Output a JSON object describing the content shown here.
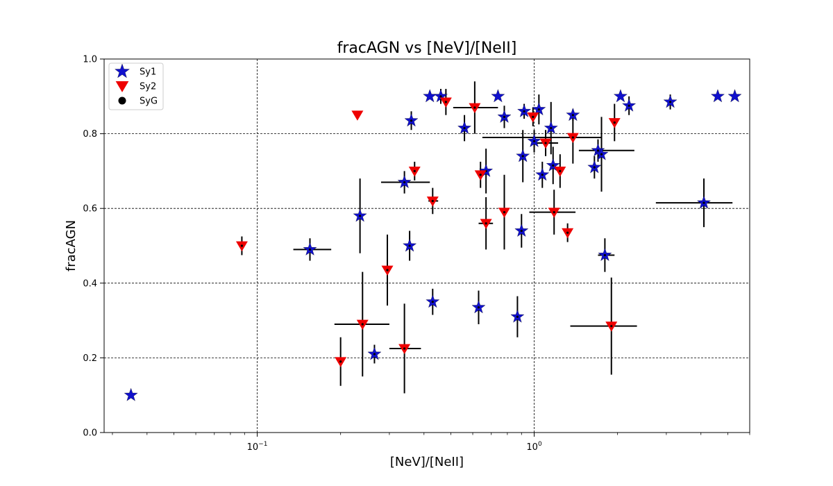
{
  "chart_data": {
    "type": "scatter",
    "title": "fracAGN vs [NeV]/[NeII]",
    "xlabel": "[NeV]/[NeII]",
    "ylabel": "fracAGN",
    "xscale": "log",
    "xlim": [
      0.028,
      6.0
    ],
    "ylim": [
      0.0,
      1.0
    ],
    "grid": true,
    "legend_position": "top-left",
    "xticks": [
      {
        "value": 0.1,
        "base": "10",
        "exp": "−1"
      },
      {
        "value": 1,
        "base": "10",
        "exp": "0"
      }
    ],
    "yticks": [
      {
        "value": 0.0,
        "label": "0.0"
      },
      {
        "value": 0.2,
        "label": "0.2"
      },
      {
        "value": 0.4,
        "label": "0.4"
      },
      {
        "value": 0.6,
        "label": "0.6"
      },
      {
        "value": 0.8,
        "label": "0.8"
      },
      {
        "value": 1.0,
        "label": "1.0"
      }
    ],
    "series": [
      {
        "name": "Sy1",
        "marker": "star",
        "color": "#1010cc",
        "points": [
          {
            "x": 0.035,
            "y": 0.1
          },
          {
            "x": 0.155,
            "y": 0.49,
            "xerr": [
              0.02,
              0.03
            ],
            "yerr": [
              0.03,
              0.03
            ]
          },
          {
            "x": 0.235,
            "y": 0.58,
            "yerr": [
              0.1,
              0.1
            ]
          },
          {
            "x": 0.265,
            "y": 0.21,
            "yerr": [
              0.025,
              0.025
            ]
          },
          {
            "x": 0.34,
            "y": 0.67,
            "xerr": [
              0.06,
              0.08
            ],
            "yerr": [
              0.03,
              0.03
            ]
          },
          {
            "x": 0.355,
            "y": 0.5,
            "yerr": [
              0.04,
              0.04
            ]
          },
          {
            "x": 0.36,
            "y": 0.835,
            "yerr": [
              0.025,
              0.025
            ]
          },
          {
            "x": 0.42,
            "y": 0.9
          },
          {
            "x": 0.43,
            "y": 0.35,
            "yerr": [
              0.035,
              0.035
            ]
          },
          {
            "x": 0.46,
            "y": 0.9,
            "yerr": [
              0.02,
              0.02
            ]
          },
          {
            "x": 0.56,
            "y": 0.815,
            "yerr": [
              0.035,
              0.035
            ]
          },
          {
            "x": 0.63,
            "y": 0.335,
            "yerr": [
              0.045,
              0.045
            ]
          },
          {
            "x": 0.67,
            "y": 0.7,
            "yerr": [
              0.06,
              0.06
            ]
          },
          {
            "x": 0.74,
            "y": 0.9
          },
          {
            "x": 0.78,
            "y": 0.845,
            "yerr": [
              0.03,
              0.03
            ]
          },
          {
            "x": 0.87,
            "y": 0.31,
            "yerr": [
              0.055,
              0.055
            ]
          },
          {
            "x": 0.9,
            "y": 0.54,
            "yerr": [
              0.045,
              0.045
            ]
          },
          {
            "x": 0.91,
            "y": 0.74,
            "yerr": [
              0.07,
              0.07
            ]
          },
          {
            "x": 0.92,
            "y": 0.86,
            "yerr": [
              0.02,
              0.02
            ]
          },
          {
            "x": 1.0,
            "y": 0.78,
            "yerr": [
              0.03,
              0.03
            ]
          },
          {
            "x": 1.04,
            "y": 0.865,
            "yerr": [
              0.04,
              0.04
            ]
          },
          {
            "x": 1.07,
            "y": 0.69,
            "yerr": [
              0.035,
              0.035
            ]
          },
          {
            "x": 1.15,
            "y": 0.815,
            "yerr": [
              0.07,
              0.07
            ]
          },
          {
            "x": 1.17,
            "y": 0.715,
            "yerr": [
              0.05,
              0.05
            ]
          },
          {
            "x": 1.38,
            "y": 0.85,
            "yerr": [
              0.015,
              0.015
            ]
          },
          {
            "x": 1.65,
            "y": 0.71,
            "yerr": [
              0.03,
              0.03
            ]
          },
          {
            "x": 1.7,
            "y": 0.755,
            "xerr": [
              0.25,
              0.6
            ],
            "yerr": [
              0.03,
              0.03
            ]
          },
          {
            "x": 1.75,
            "y": 0.745,
            "yerr": [
              0.1,
              0.1
            ]
          },
          {
            "x": 1.8,
            "y": 0.475,
            "xerr": [
              0.1,
              0.15
            ],
            "yerr": [
              0.045,
              0.045
            ]
          },
          {
            "x": 2.05,
            "y": 0.9
          },
          {
            "x": 2.2,
            "y": 0.875,
            "yerr": [
              0.025,
              0.025
            ]
          },
          {
            "x": 3.1,
            "y": 0.885,
            "yerr": [
              0.02,
              0.02
            ]
          },
          {
            "x": 4.1,
            "y": 0.615,
            "xerr": [
              1.35,
              1.1
            ],
            "yerr": [
              0.065,
              0.065
            ]
          },
          {
            "x": 4.6,
            "y": 0.9
          },
          {
            "x": 5.3,
            "y": 0.9
          }
        ]
      },
      {
        "name": "Sy2",
        "marker": "triangle-down",
        "color": "#ee0000",
        "points": [
          {
            "x": 0.088,
            "y": 0.5,
            "yerr": [
              0.025,
              0.025
            ]
          },
          {
            "x": 0.2,
            "y": 0.19,
            "yerr": [
              0.065,
              0.065
            ]
          },
          {
            "x": 0.23,
            "y": 0.85
          },
          {
            "x": 0.24,
            "y": 0.29,
            "xerr": [
              0.05,
              0.06
            ],
            "yerr": [
              0.14,
              0.14
            ]
          },
          {
            "x": 0.295,
            "y": 0.435,
            "yerr": [
              0.095,
              0.095
            ]
          },
          {
            "x": 0.34,
            "y": 0.225,
            "xerr": [
              0.04,
              0.05
            ],
            "yerr": [
              0.12,
              0.12
            ]
          },
          {
            "x": 0.37,
            "y": 0.7,
            "yerr": [
              0.025,
              0.025
            ]
          },
          {
            "x": 0.43,
            "y": 0.62,
            "xerr": [
              0.015,
              0.02
            ],
            "yerr": [
              0.035,
              0.035
            ]
          },
          {
            "x": 0.48,
            "y": 0.885,
            "yerr": [
              0.035,
              0.035
            ]
          },
          {
            "x": 0.61,
            "y": 0.87,
            "xerr": [
              0.1,
              0.13
            ],
            "yerr": [
              0.07,
              0.07
            ]
          },
          {
            "x": 0.64,
            "y": 0.69,
            "yerr": [
              0.035,
              0.035
            ]
          },
          {
            "x": 0.67,
            "y": 0.56,
            "xerr": [
              0.04,
              0.04
            ],
            "yerr": [
              0.07,
              0.07
            ]
          },
          {
            "x": 0.78,
            "y": 0.59,
            "yerr": [
              0.1,
              0.1
            ]
          },
          {
            "x": 0.99,
            "y": 0.845,
            "yerr": [
              0.025,
              0.025
            ]
          },
          {
            "x": 1.1,
            "y": 0.775,
            "xerr": [
              0.12,
              0.12
            ],
            "yerr": [
              0.035,
              0.035
            ]
          },
          {
            "x": 1.18,
            "y": 0.59,
            "xerr": [
              0.22,
              0.23
            ],
            "yerr": [
              0.06,
              0.06
            ]
          },
          {
            "x": 1.24,
            "y": 0.7,
            "yerr": [
              0.045,
              0.045
            ]
          },
          {
            "x": 1.32,
            "y": 0.535,
            "yerr": [
              0.025,
              0.025
            ]
          },
          {
            "x": 1.38,
            "y": 0.79,
            "xerr": [
              0.73,
              0.38
            ],
            "yerr": [
              0.07,
              0.07
            ]
          },
          {
            "x": 1.9,
            "y": 0.285,
            "xerr": [
              0.55,
              0.45
            ],
            "yerr": [
              0.13,
              0.13
            ]
          },
          {
            "x": 1.95,
            "y": 0.83,
            "yerr": [
              0.05,
              0.05
            ]
          }
        ]
      },
      {
        "name": "SyG",
        "marker": "circle",
        "color": "#000000",
        "points": []
      }
    ]
  }
}
